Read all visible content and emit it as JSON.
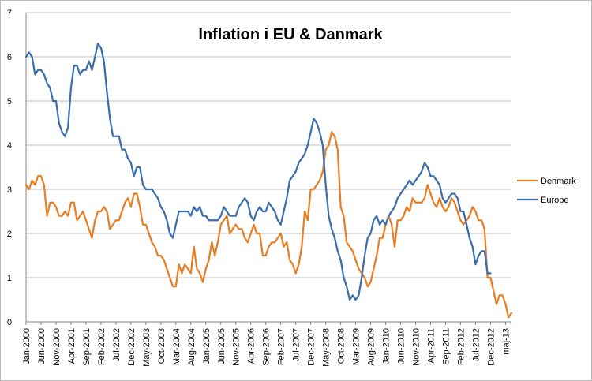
{
  "chart_data": {
    "type": "line",
    "title": "Inflation i EU & Danmark",
    "xlabel": "",
    "ylabel": "",
    "ylim": [
      0,
      7
    ],
    "yticks": [
      "0",
      "1",
      "2",
      "3",
      "4",
      "5",
      "6",
      "7"
    ],
    "grid": true,
    "legend_position": "right",
    "x_tick_labels": [
      "Jan-2000",
      "Jun-2000",
      "Nov-2000",
      "Apr-2001",
      "Sep-2001",
      "Feb-2002",
      "Jul-2002",
      "Dec-2002",
      "May-2003",
      "Oct-2003",
      "Mar-2004",
      "Aug-2004",
      "Jan-2005",
      "Jun-2005",
      "Nov-2005",
      "Apr-2006",
      "Sep-2006",
      "Feb-2007",
      "Jul-2007",
      "Dec-2007",
      "May-2008",
      "Oct-2008",
      "Mar-2009",
      "Aug-2009",
      "Jan-2010",
      "Jun-2010",
      "Nov-2010",
      "Apr-2011",
      "Sep-2011",
      "Feb-2012",
      "Jul-2012",
      "Dec-2012",
      "maj-13"
    ],
    "x_start": "Jan-2000",
    "x_step": "1 month",
    "series": [
      {
        "name": "Denmark",
        "color": "#E87E24",
        "values": [
          3.1,
          3.0,
          3.2,
          3.1,
          3.3,
          3.3,
          3.1,
          2.4,
          2.7,
          2.7,
          2.6,
          2.4,
          2.4,
          2.5,
          2.4,
          2.7,
          2.7,
          2.3,
          2.4,
          2.5,
          2.3,
          2.1,
          1.9,
          2.3,
          2.5,
          2.5,
          2.6,
          2.5,
          2.1,
          2.2,
          2.3,
          2.3,
          2.5,
          2.7,
          2.8,
          2.6,
          2.9,
          2.9,
          2.6,
          2.2,
          2.2,
          2.0,
          1.8,
          1.7,
          1.5,
          1.5,
          1.4,
          1.2,
          1.0,
          0.8,
          0.8,
          1.3,
          1.1,
          1.3,
          1.2,
          1.1,
          1.7,
          1.2,
          1.1,
          0.9,
          1.2,
          1.4,
          1.8,
          1.5,
          1.8,
          2.2,
          2.3,
          2.4,
          2.0,
          2.1,
          2.2,
          2.1,
          2.1,
          1.9,
          1.8,
          2.0,
          2.2,
          2.0,
          2.0,
          1.5,
          1.5,
          1.7,
          1.8,
          1.8,
          1.9,
          2.0,
          1.7,
          1.8,
          1.4,
          1.3,
          1.1,
          1.3,
          1.7,
          2.5,
          2.3,
          3.0,
          3.0,
          3.1,
          3.2,
          3.4,
          3.9,
          4.0,
          4.3,
          4.2,
          3.9,
          2.6,
          2.4,
          1.8,
          1.7,
          1.6,
          1.4,
          1.2,
          1.1,
          1.0,
          0.8,
          0.9,
          1.2,
          1.5,
          1.9,
          1.9,
          2.2,
          2.4,
          2.2,
          1.7,
          2.3,
          2.3,
          2.4,
          2.6,
          2.5,
          2.8,
          2.7,
          2.7,
          2.7,
          2.8,
          3.1,
          2.9,
          2.7,
          2.6,
          2.8,
          2.6,
          2.5,
          2.6,
          2.8,
          2.7,
          2.5,
          2.3,
          2.2,
          2.3,
          2.4,
          2.6,
          2.5,
          2.3,
          2.3,
          2.1,
          1.0,
          1.0,
          0.7,
          0.4,
          0.6,
          0.6,
          0.4,
          0.1,
          0.2
        ]
      },
      {
        "name": "Europe",
        "color": "#3C6EAA",
        "values": [
          6.0,
          6.1,
          6.0,
          5.6,
          5.7,
          5.7,
          5.6,
          5.4,
          5.3,
          5.0,
          5.0,
          4.5,
          4.3,
          4.2,
          4.4,
          5.3,
          5.8,
          5.8,
          5.6,
          5.7,
          5.7,
          5.9,
          5.7,
          6.0,
          6.3,
          6.2,
          5.9,
          5.2,
          4.6,
          4.2,
          4.2,
          4.2,
          3.9,
          3.9,
          3.7,
          3.6,
          3.3,
          3.5,
          3.5,
          3.1,
          3.0,
          3.0,
          3.0,
          2.9,
          2.8,
          2.6,
          2.5,
          2.3,
          2.0,
          1.9,
          2.2,
          2.5,
          2.5,
          2.5,
          2.5,
          2.4,
          2.6,
          2.5,
          2.6,
          2.4,
          2.4,
          2.3,
          2.3,
          2.3,
          2.3,
          2.4,
          2.6,
          2.5,
          2.4,
          2.4,
          2.4,
          2.6,
          2.7,
          2.8,
          2.7,
          2.4,
          2.3,
          2.5,
          2.6,
          2.5,
          2.5,
          2.7,
          2.6,
          2.5,
          2.3,
          2.2,
          2.5,
          2.8,
          3.2,
          3.3,
          3.4,
          3.6,
          3.7,
          3.8,
          4.0,
          4.3,
          4.6,
          4.5,
          4.3,
          4.0,
          3.1,
          2.4,
          2.1,
          1.9,
          1.6,
          1.4,
          1.0,
          0.8,
          0.5,
          0.6,
          0.5,
          0.6,
          1.0,
          1.5,
          1.9,
          2.0,
          2.3,
          2.4,
          2.2,
          2.3,
          2.2,
          2.4,
          2.5,
          2.6,
          2.8,
          2.9,
          3.0,
          3.1,
          3.2,
          3.1,
          3.2,
          3.3,
          3.4,
          3.6,
          3.5,
          3.3,
          3.3,
          3.2,
          3.1,
          2.8,
          2.7,
          2.8,
          2.9,
          2.9,
          2.8,
          2.5,
          2.5,
          2.2,
          1.9,
          1.7,
          1.3,
          1.5,
          1.6,
          1.6,
          1.1,
          1.1
        ]
      }
    ]
  }
}
